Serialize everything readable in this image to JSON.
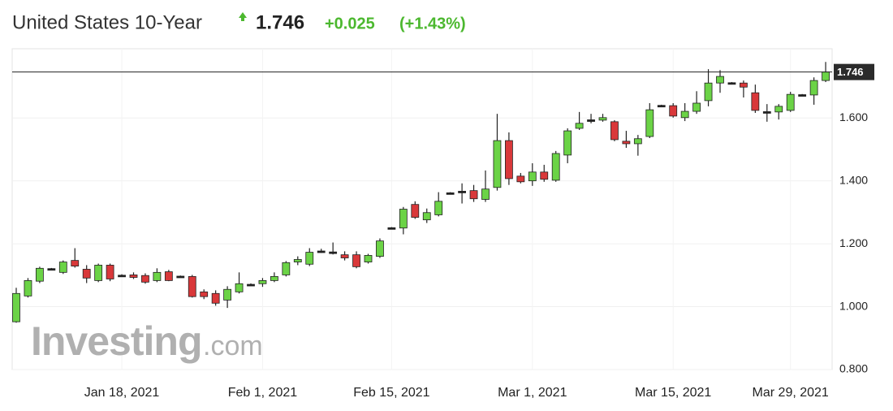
{
  "chart_data": {
    "type": "candlestick",
    "title": "United States 10-Year",
    "change": "+0.025",
    "change_percent": "(+1.43%)",
    "last_value": {
      "value": 1.746,
      "label": "1.746"
    },
    "watermark": {
      "brand": "Investing",
      "suffix": ".com"
    },
    "up_color": "#6bd346",
    "down_color": "#d9383a",
    "grid": true,
    "ylim": [
      0.8,
      1.82
    ],
    "yticks": [
      {
        "value": 0.8,
        "label": "0.800"
      },
      {
        "value": 1.0,
        "label": "1.000"
      },
      {
        "value": 1.2,
        "label": "1.200"
      },
      {
        "value": 1.4,
        "label": "1.400"
      },
      {
        "value": 1.6,
        "label": "1.600"
      }
    ],
    "categories": [
      null,
      null,
      null,
      null,
      null,
      null,
      null,
      null,
      null,
      "Jan 18, 2021",
      null,
      null,
      null,
      null,
      null,
      null,
      null,
      null,
      null,
      null,
      null,
      "Feb 1, 2021",
      null,
      null,
      null,
      null,
      null,
      null,
      null,
      null,
      null,
      null,
      "Feb 15, 2021",
      null,
      null,
      null,
      null,
      null,
      null,
      null,
      null,
      null,
      null,
      null,
      "Mar 1, 2021",
      null,
      null,
      null,
      null,
      null,
      null,
      null,
      null,
      null,
      null,
      null,
      "Mar 15, 2021",
      null,
      null,
      null,
      null,
      null,
      null,
      null,
      null,
      null,
      "Mar 29, 2021",
      null,
      null,
      null
    ],
    "open": [
      0.952,
      1.034,
      1.081,
      1.119,
      1.109,
      1.147,
      1.119,
      1.083,
      1.132,
      1.099,
      1.101,
      1.099,
      1.083,
      1.111,
      1.096,
      1.096,
      1.047,
      1.042,
      1.021,
      1.047,
      1.07,
      1.073,
      1.083,
      1.101,
      1.142,
      1.135,
      1.176,
      1.173,
      1.165,
      1.165,
      1.142,
      1.16,
      1.25,
      1.25,
      1.325,
      1.276,
      1.292,
      1.361,
      1.366,
      1.369,
      1.341,
      1.379,
      1.528,
      1.415,
      1.4,
      1.428,
      1.402,
      1.482,
      1.567,
      1.593,
      1.593,
      1.588,
      1.526,
      1.518,
      1.541,
      1.639,
      1.639,
      1.601,
      1.621,
      1.655,
      1.711,
      1.711,
      1.711,
      1.68,
      1.619,
      1.619,
      1.624,
      1.673,
      1.673,
      1.719
    ],
    "high": [
      1.06,
      1.091,
      1.127,
      1.123,
      1.147,
      1.186,
      1.132,
      1.137,
      1.137,
      1.103,
      1.109,
      1.106,
      1.122,
      1.117,
      1.099,
      1.101,
      1.055,
      1.052,
      1.065,
      1.109,
      1.074,
      1.091,
      1.109,
      1.145,
      1.16,
      1.186,
      1.184,
      1.204,
      1.176,
      1.176,
      1.168,
      1.217,
      1.253,
      1.317,
      1.335,
      1.312,
      1.364,
      1.364,
      1.392,
      1.387,
      1.433,
      1.613,
      1.554,
      1.425,
      1.456,
      1.451,
      1.495,
      1.567,
      1.619,
      1.613,
      1.613,
      1.593,
      1.559,
      1.546,
      1.647,
      1.642,
      1.647,
      1.647,
      1.685,
      1.755,
      1.752,
      1.714,
      1.719,
      1.706,
      1.644,
      1.644,
      1.683,
      1.676,
      1.729,
      1.778
    ],
    "low": [
      0.949,
      1.029,
      1.075,
      1.117,
      1.104,
      1.124,
      1.075,
      1.078,
      1.081,
      1.097,
      1.088,
      1.073,
      1.078,
      1.081,
      1.094,
      1.029,
      1.024,
      1.003,
      0.996,
      1.042,
      1.067,
      1.063,
      1.078,
      1.096,
      1.132,
      1.129,
      1.171,
      1.166,
      1.147,
      1.122,
      1.137,
      1.155,
      1.248,
      1.23,
      1.279,
      1.266,
      1.287,
      1.359,
      1.328,
      1.333,
      1.333,
      1.369,
      1.387,
      1.392,
      1.384,
      1.397,
      1.397,
      1.456,
      1.562,
      1.583,
      1.588,
      1.526,
      1.505,
      1.48,
      1.536,
      1.637,
      1.601,
      1.59,
      1.613,
      1.637,
      1.68,
      1.709,
      1.665,
      1.616,
      1.588,
      1.595,
      1.619,
      1.671,
      1.642,
      1.714
    ],
    "close": [
      1.042,
      1.083,
      1.122,
      1.121,
      1.142,
      1.129,
      1.091,
      1.132,
      1.088,
      1.1,
      1.093,
      1.078,
      1.109,
      1.083,
      1.097,
      1.032,
      1.032,
      1.011,
      1.055,
      1.073,
      1.071,
      1.083,
      1.096,
      1.14,
      1.15,
      1.173,
      1.177,
      1.174,
      1.155,
      1.127,
      1.163,
      1.209,
      1.251,
      1.31,
      1.284,
      1.299,
      1.335,
      1.362,
      1.367,
      1.343,
      1.374,
      1.528,
      1.407,
      1.397,
      1.428,
      1.405,
      1.487,
      1.559,
      1.583,
      1.594,
      1.601,
      1.531,
      1.518,
      1.534,
      1.626,
      1.64,
      1.606,
      1.621,
      1.647,
      1.711,
      1.732,
      1.712,
      1.698,
      1.624,
      1.62,
      1.637,
      1.675,
      1.674,
      1.719,
      1.746
    ]
  }
}
